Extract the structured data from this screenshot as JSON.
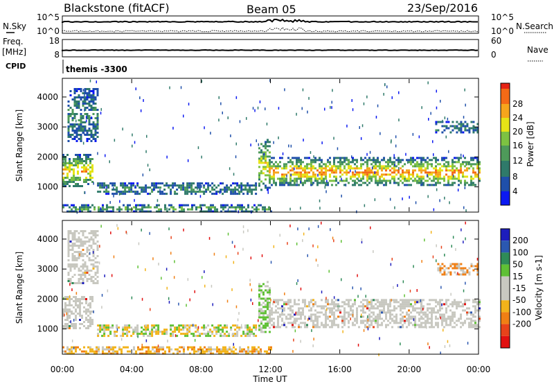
{
  "header": {
    "radar": "Blackstone (fitACF)",
    "beam": "Beam 05",
    "date": "23/Sep/2016"
  },
  "top_panels": {
    "nsky_label": "N.Sky",
    "nsky_ticks": [
      "10^5",
      "10^0"
    ],
    "nsky_right_ticks": [
      "10^5",
      "10^0"
    ],
    "nsearch_label": "N.Search",
    "freq_label_line1": "Freq.",
    "freq_label_line2": "[MHz]",
    "freq_ticks": [
      "18",
      "8"
    ],
    "nave_ticks": [
      "60",
      "0"
    ],
    "nave_label": "Nave",
    "cpid_label": "CPID",
    "cpid_value": "themis -3300"
  },
  "x_axis": {
    "label": "Time UT",
    "ticks": [
      "00:00",
      "04:00",
      "08:00",
      "12:00",
      "16:00",
      "20:00",
      "00:00"
    ]
  },
  "chart_data": [
    {
      "type": "heatmap",
      "title": "",
      "xlabel": "Time UT",
      "ylabel": "Slant Range [km]",
      "xlim": [
        0,
        24
      ],
      "ylim": [
        180,
        4600
      ],
      "y_ticks": [
        1000,
        2000,
        3000,
        4000
      ],
      "grid": false,
      "colorbar": {
        "label": "Power [dB]",
        "range": [
          0,
          32
        ],
        "ticks": [
          "4",
          "8",
          "12",
          "16",
          "20",
          "24",
          "28"
        ],
        "colors": [
          "#0b19f2",
          "#1f4faa",
          "#2f7a6a",
          "#4e9a5a",
          "#7dc242",
          "#e6e416",
          "#f6a51c",
          "#f46a16",
          "#e62214"
        ]
      },
      "regions": [
        {
          "t": [
            0.0,
            1.7
          ],
          "r": [
            1000,
            2100
          ],
          "level": 0.6
        },
        {
          "t": [
            0.3,
            2.0
          ],
          "r": [
            2500,
            4300
          ],
          "level": 0.15
        },
        {
          "t": [
            2.0,
            11.2
          ],
          "r": [
            780,
            1150
          ],
          "level": 0.18
        },
        {
          "t": [
            0.0,
            12.0
          ],
          "r": [
            200,
            420
          ],
          "level": 0.35
        },
        {
          "t": [
            11.3,
            11.9
          ],
          "r": [
            900,
            2600
          ],
          "level": 0.55
        },
        {
          "t": [
            11.9,
            24.0
          ],
          "r": [
            1050,
            2000
          ],
          "level": 0.7
        },
        {
          "t": [
            21.5,
            24.0
          ],
          "r": [
            2800,
            3200
          ],
          "level": 0.12
        }
      ]
    },
    {
      "type": "heatmap",
      "title": "",
      "xlabel": "Time UT",
      "ylabel": "Slant Range [km]",
      "xlim": [
        0,
        24
      ],
      "ylim": [
        180,
        4600
      ],
      "y_ticks": [
        1000,
        2000,
        3000,
        4000
      ],
      "grid": false,
      "colorbar": {
        "label": "Velocity [m s-1]",
        "ticks": [
          "200",
          "100",
          "50",
          "15",
          "-15",
          "-50",
          "-100",
          "-200"
        ],
        "colors": [
          "#1d1dbd",
          "#2b58b0",
          "#2e8b57",
          "#5fc035",
          "#c8c8c0",
          "#c8c8c0",
          "#f2b31a",
          "#f07f14",
          "#e8431a",
          "#e21010"
        ]
      },
      "regions": [
        {
          "t": [
            0.0,
            1.7
          ],
          "r": [
            1000,
            2100
          ],
          "level": "ground"
        },
        {
          "t": [
            0.3,
            2.0
          ],
          "r": [
            2500,
            4300
          ],
          "level": "ground"
        },
        {
          "t": [
            2.0,
            11.2
          ],
          "r": [
            780,
            1150
          ],
          "level": "mixed_orange_green"
        },
        {
          "t": [
            0.0,
            12.0
          ],
          "r": [
            200,
            420
          ],
          "level": "mixed_orange"
        },
        {
          "t": [
            11.3,
            11.9
          ],
          "r": [
            900,
            2600
          ],
          "level": "green"
        },
        {
          "t": [
            11.9,
            24.0
          ],
          "r": [
            1050,
            2000
          ],
          "level": "ground"
        },
        {
          "t": [
            21.5,
            24.0
          ],
          "r": [
            2800,
            3200
          ],
          "level": "orange_ground"
        }
      ]
    }
  ]
}
